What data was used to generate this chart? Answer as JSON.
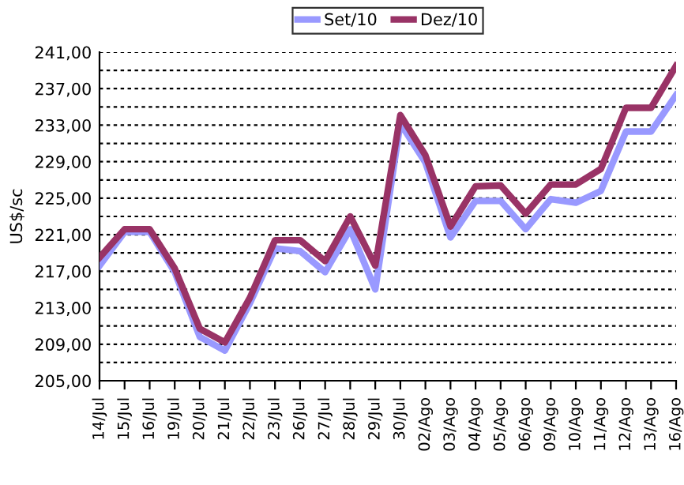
{
  "chart_data": {
    "type": "line",
    "ylabel": "US$/sc",
    "categories": [
      "14/Jul",
      "15/Jul",
      "16/Jul",
      "19/Jul",
      "20/Jul",
      "21/Jul",
      "22/Jul",
      "23/Jul",
      "26/Jul",
      "27/Jul",
      "28/Jul",
      "29/Jul",
      "30/Jul",
      "02/Ago",
      "03/Ago",
      "04/Ago",
      "05/Ago",
      "06/Ago",
      "09/Ago",
      "10/Ago",
      "11/Ago",
      "12/Ago",
      "13/Ago",
      "16/Ago"
    ],
    "series": [
      {
        "name": "Set/10",
        "color": "#9999ff",
        "values": [
          217.6,
          221.3,
          221.3,
          216.9,
          209.8,
          208.3,
          213.5,
          219.5,
          219.2,
          216.9,
          221.6,
          215.0,
          233.2,
          228.9,
          220.7,
          224.7,
          224.7,
          221.6,
          224.9,
          224.5,
          225.8,
          232.3,
          232.3,
          236.3
        ]
      },
      {
        "name": "Dez/10",
        "color": "#993366",
        "values": [
          218.5,
          221.6,
          221.6,
          217.3,
          210.7,
          209.2,
          214.1,
          220.4,
          220.4,
          218.1,
          223.0,
          217.6,
          234.1,
          229.7,
          221.9,
          226.3,
          226.4,
          223.3,
          226.5,
          226.5,
          228.2,
          234.9,
          234.9,
          239.5
        ]
      }
    ],
    "ylim": [
      205,
      241
    ],
    "yticks": [
      {
        "value": 205,
        "label": "205,00"
      },
      {
        "value": 207,
        "label": null
      },
      {
        "value": 209,
        "label": "209,00"
      },
      {
        "value": 211,
        "label": null
      },
      {
        "value": 213,
        "label": "213,00"
      },
      {
        "value": 215,
        "label": null
      },
      {
        "value": 217,
        "label": "217,00"
      },
      {
        "value": 219,
        "label": null
      },
      {
        "value": 221,
        "label": "221,00"
      },
      {
        "value": 223,
        "label": null
      },
      {
        "value": 225,
        "label": "225,00"
      },
      {
        "value": 227,
        "label": null
      },
      {
        "value": 229,
        "label": "229,00"
      },
      {
        "value": 231,
        "label": null
      },
      {
        "value": 233,
        "label": "233,00"
      },
      {
        "value": 235,
        "label": null
      },
      {
        "value": 237,
        "label": "237,00"
      },
      {
        "value": 239,
        "label": null
      },
      {
        "value": 241,
        "label": "241,00"
      }
    ],
    "grid": "y",
    "legend": "top",
    "marker": "none",
    "line_style": "solid"
  }
}
